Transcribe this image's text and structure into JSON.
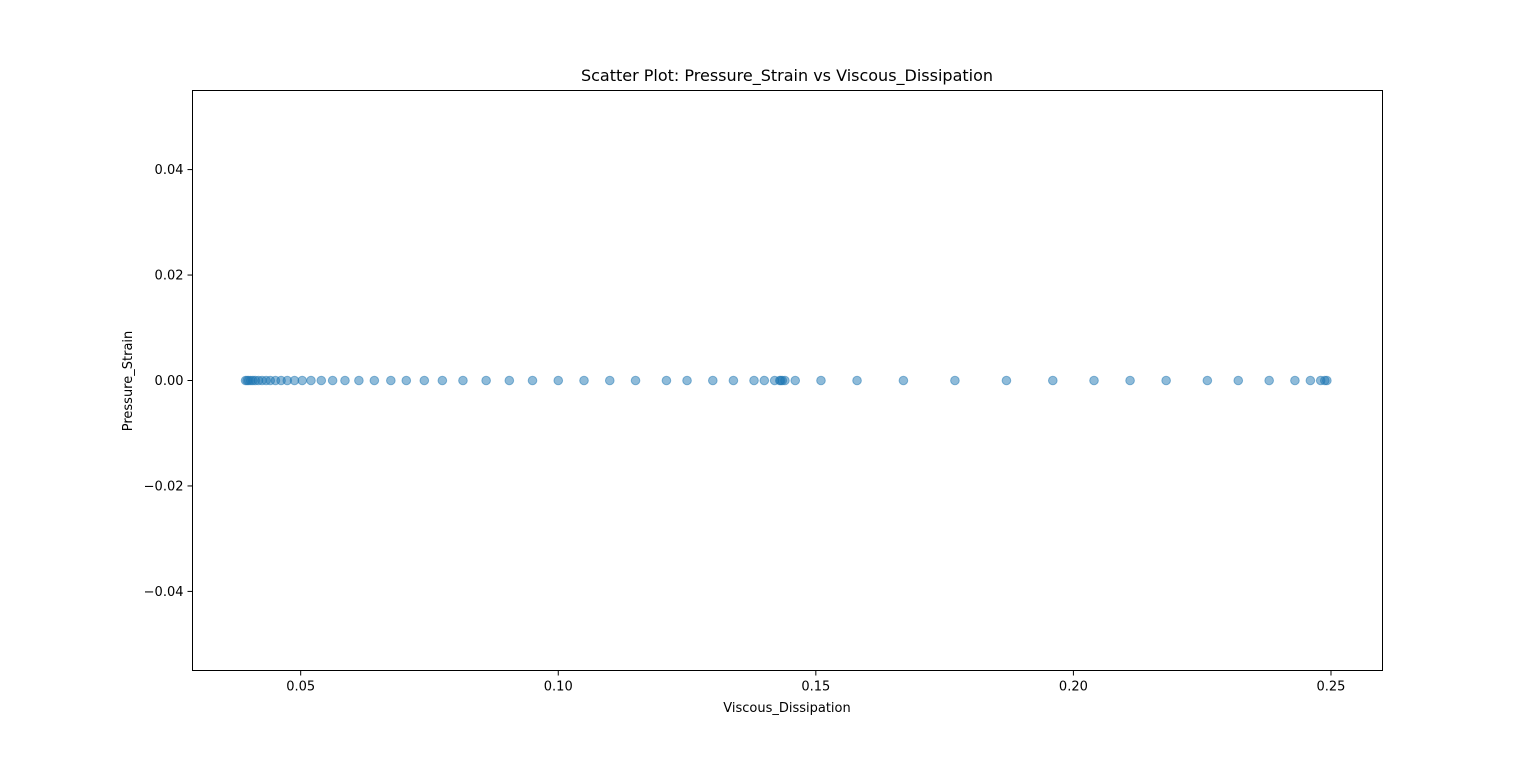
{
  "chart_data": {
    "type": "scatter",
    "title": "Scatter Plot: Pressure_Strain vs Viscous_Dissipation",
    "xlabel": "Viscous_Dissipation",
    "ylabel": "Pressure_Strain",
    "xlim": [
      0.029,
      0.26
    ],
    "ylim": [
      -0.055,
      0.055
    ],
    "xticks": [
      0.05,
      0.1,
      0.15,
      0.2,
      0.25
    ],
    "xtick_labels": [
      "0.05",
      "0.10",
      "0.15",
      "0.20",
      "0.25"
    ],
    "yticks": [
      0.04,
      0.02,
      0.0,
      -0.02,
      -0.04
    ],
    "ytick_labels": [
      "0.04",
      "0.02",
      "0.00",
      "−0.02",
      "−0.04"
    ],
    "grid": false,
    "point_color": "#1f77b4",
    "point_alpha": 0.5,
    "x": [
      0.0393,
      0.0396,
      0.0399,
      0.0403,
      0.0407,
      0.0412,
      0.0418,
      0.0425,
      0.0433,
      0.0441,
      0.0451,
      0.0462,
      0.0474,
      0.0488,
      0.0503,
      0.052,
      0.054,
      0.0562,
      0.0586,
      0.0613,
      0.0643,
      0.0675,
      0.0705,
      0.074,
      0.0775,
      0.0815,
      0.086,
      0.0905,
      0.095,
      0.1,
      0.105,
      0.11,
      0.115,
      0.121,
      0.125,
      0.13,
      0.134,
      0.138,
      0.14,
      0.142,
      0.143,
      0.1432,
      0.1435,
      0.144,
      0.146,
      0.151,
      0.158,
      0.167,
      0.177,
      0.187,
      0.196,
      0.204,
      0.211,
      0.218,
      0.226,
      0.232,
      0.238,
      0.243,
      0.246,
      0.248,
      0.2488,
      0.2492
    ],
    "y": [
      0,
      0,
      0,
      0,
      0,
      0,
      0,
      0,
      0,
      0,
      0,
      0,
      0,
      0,
      0,
      0,
      0,
      0,
      0,
      0,
      0,
      0,
      0,
      0,
      0,
      0,
      0,
      0,
      0,
      0,
      0,
      0,
      0,
      0,
      0,
      0,
      0,
      0,
      0,
      0,
      0,
      0,
      0,
      0,
      0,
      0,
      0,
      0,
      0,
      0,
      0,
      0,
      0,
      0,
      0,
      0,
      0,
      0,
      0,
      0,
      0,
      0
    ]
  }
}
